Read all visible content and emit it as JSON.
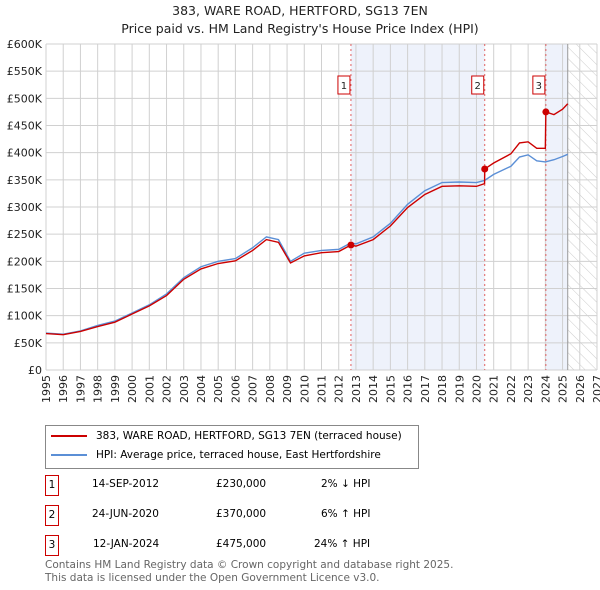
{
  "chart_data": {
    "type": "line",
    "title": "383, WARE ROAD, HERTFORD, SG13 7EN",
    "subtitle": "Price paid vs. HM Land Registry's House Price Index (HPI)",
    "xlim": [
      1995,
      2027
    ],
    "ylim": [
      0,
      600000
    ],
    "x_ticks": [
      "1995",
      "1996",
      "1997",
      "1998",
      "1999",
      "2000",
      "2001",
      "2002",
      "2003",
      "2004",
      "2005",
      "2006",
      "2007",
      "2008",
      "2009",
      "2010",
      "2011",
      "2012",
      "2013",
      "2014",
      "2015",
      "2016",
      "2017",
      "2018",
      "2019",
      "2020",
      "2021",
      "2022",
      "2023",
      "2024",
      "2025",
      "2026",
      "2027"
    ],
    "y_ticks": [
      {
        "v": 0,
        "label": "£0"
      },
      {
        "v": 50000,
        "label": "£50K"
      },
      {
        "v": 100000,
        "label": "£100K"
      },
      {
        "v": 150000,
        "label": "£150K"
      },
      {
        "v": 200000,
        "label": "£200K"
      },
      {
        "v": 250000,
        "label": "£250K"
      },
      {
        "v": 300000,
        "label": "£300K"
      },
      {
        "v": 350000,
        "label": "£350K"
      },
      {
        "v": 400000,
        "label": "£400K"
      },
      {
        "v": 450000,
        "label": "£450K"
      },
      {
        "v": 500000,
        "label": "£500K"
      },
      {
        "v": 550000,
        "label": "£550K"
      },
      {
        "v": 600000,
        "label": "£600K"
      }
    ],
    "grid": true,
    "shaded_range": [
      2012.71,
      2020.48
    ],
    "forecast_hatch_from": 2025.3,
    "series": [
      {
        "name": "383, WARE ROAD, HERTFORD, SG13 7EN (terraced house)",
        "color": "#cc0000",
        "x": [
          1995,
          1996,
          1997,
          1998,
          1999,
          2000,
          2001,
          2002,
          2003,
          2004,
          2005,
          2006,
          2007,
          2007.8,
          2008.5,
          2009.2,
          2010,
          2011,
          2012,
          2012.71,
          2013,
          2014,
          2015,
          2016,
          2017,
          2018,
          2019,
          2020,
          2020.47,
          2020.48,
          2021,
          2022,
          2022.5,
          2023,
          2023.5,
          2024.0,
          2024.03,
          2024.5,
          2025,
          2025.3
        ],
        "y": [
          67000,
          65000,
          71000,
          80000,
          88000,
          103000,
          118000,
          137000,
          167000,
          186000,
          196000,
          201000,
          220000,
          240000,
          235000,
          197000,
          210000,
          216000,
          218000,
          230000,
          228000,
          240000,
          265000,
          299000,
          323000,
          338000,
          339000,
          338000,
          343000,
          370000,
          381000,
          398000,
          418000,
          420000,
          408000,
          408000,
          475000,
          470000,
          480000,
          490000
        ]
      },
      {
        "name": "HPI: Average price, terraced house, East Hertfordshire",
        "color": "#5b8fd6",
        "x": [
          1995,
          1996,
          1997,
          1998,
          1999,
          2000,
          2001,
          2002,
          2003,
          2004,
          2005,
          2006,
          2007,
          2007.8,
          2008.5,
          2009.2,
          2010,
          2011,
          2012,
          2012.71,
          2013,
          2014,
          2015,
          2016,
          2017,
          2018,
          2019,
          2020,
          2020.48,
          2021,
          2022,
          2022.5,
          2023,
          2023.5,
          2024,
          2024.5,
          2025,
          2025.3
        ],
        "y": [
          68000,
          66000,
          72000,
          82000,
          90000,
          105000,
          120000,
          140000,
          170000,
          190000,
          200000,
          205000,
          225000,
          245000,
          240000,
          200000,
          215000,
          220000,
          222000,
          234000,
          232000,
          245000,
          270000,
          305000,
          330000,
          345000,
          346000,
          345000,
          349000,
          360000,
          375000,
          392000,
          396000,
          385000,
          383000,
          387000,
          393000,
          397000
        ]
      }
    ],
    "markers": [
      {
        "id": "1",
        "x": 2012.71,
        "y": 230000
      },
      {
        "id": "2",
        "x": 2020.48,
        "y": 370000
      },
      {
        "id": "3",
        "x": 2024.03,
        "y": 475000
      }
    ]
  },
  "legend": {
    "red": "383, WARE ROAD, HERTFORD, SG13 7EN (terraced house)",
    "blue": "HPI: Average price, terraced house, East Hertfordshire"
  },
  "transactions": [
    {
      "id": "1",
      "date": "14-SEP-2012",
      "price": "£230,000",
      "delta": "2% ↓ HPI"
    },
    {
      "id": "2",
      "date": "24-JUN-2020",
      "price": "£370,000",
      "delta": "6% ↑ HPI"
    },
    {
      "id": "3",
      "date": "12-JAN-2024",
      "price": "£475,000",
      "delta": "24% ↑ HPI"
    }
  ],
  "footer": {
    "line1": "Contains HM Land Registry data © Crown copyright and database right 2025.",
    "line2": "This data is licensed under the Open Government Licence v3.0."
  }
}
